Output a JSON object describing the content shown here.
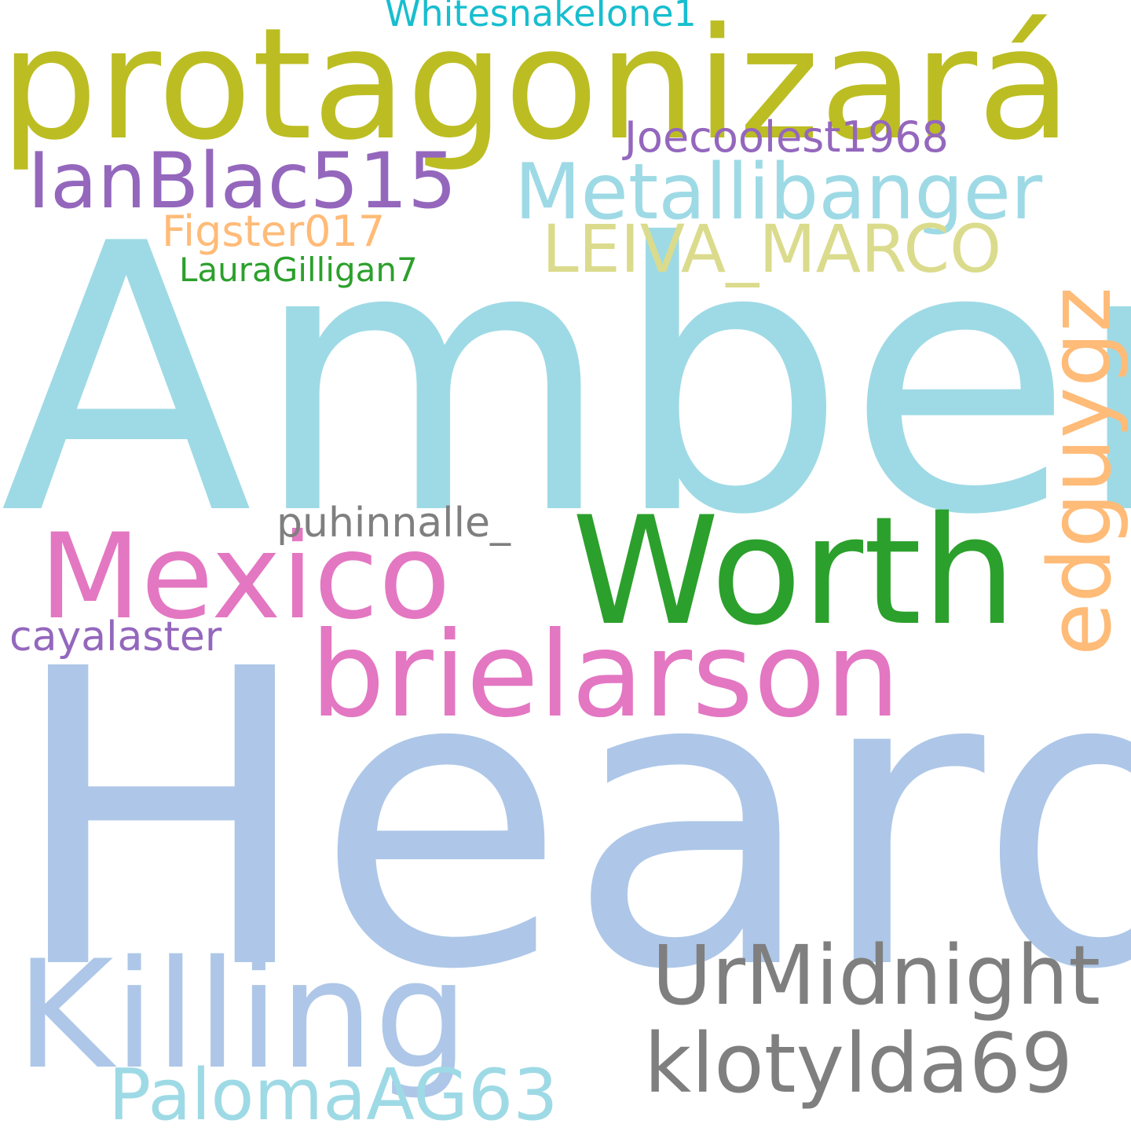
{
  "words": {
    "heard": {
      "text": "Heard",
      "color": "#aec7e8"
    },
    "amber": {
      "text": "Amber",
      "color": "#9edae5"
    },
    "protagonizara": {
      "text": "protagonizará",
      "color": "#bcbd22"
    },
    "worth": {
      "text": "Worth",
      "color": "#2ca02c"
    },
    "killing": {
      "text": "Killing",
      "color": "#aec7e8"
    },
    "mexico": {
      "text": "Mexico",
      "color": "#e377c2"
    },
    "brielarson": {
      "text": "brielarson",
      "color": "#e377c2"
    },
    "urmidnight": {
      "text": "UrMidnight",
      "color": "#7f7f7f"
    },
    "klotylda69": {
      "text": "klotylda69",
      "color": "#7f7f7f"
    },
    "metallibanger": {
      "text": "Metallibanger",
      "color": "#9edae5"
    },
    "ianblac515": {
      "text": "IanBlac515",
      "color": "#9467bd"
    },
    "palomaag63": {
      "text": "PalomaAG63",
      "color": "#9edae5"
    },
    "leiva_marco": {
      "text": "LEIVA_MARCO",
      "color": "#dbdb8d"
    },
    "edguygz": {
      "text": "edguygz",
      "color": "#ffbb78"
    },
    "puhinnalle_": {
      "text": "puhinnalle_",
      "color": "#7f7f7f"
    },
    "joecoolest1968": {
      "text": "Joecoolest1968",
      "color": "#9467bd"
    },
    "cayalaster": {
      "text": "cayalaster",
      "color": "#9467bd"
    },
    "figster017": {
      "text": "Figster017",
      "color": "#ffbb78"
    },
    "lauragilligan7": {
      "text": "LauraGilligan7",
      "color": "#2ca02c"
    },
    "whitesnakeione1": {
      "text": "WhitesnakeIone1",
      "color": "#17becf"
    }
  }
}
